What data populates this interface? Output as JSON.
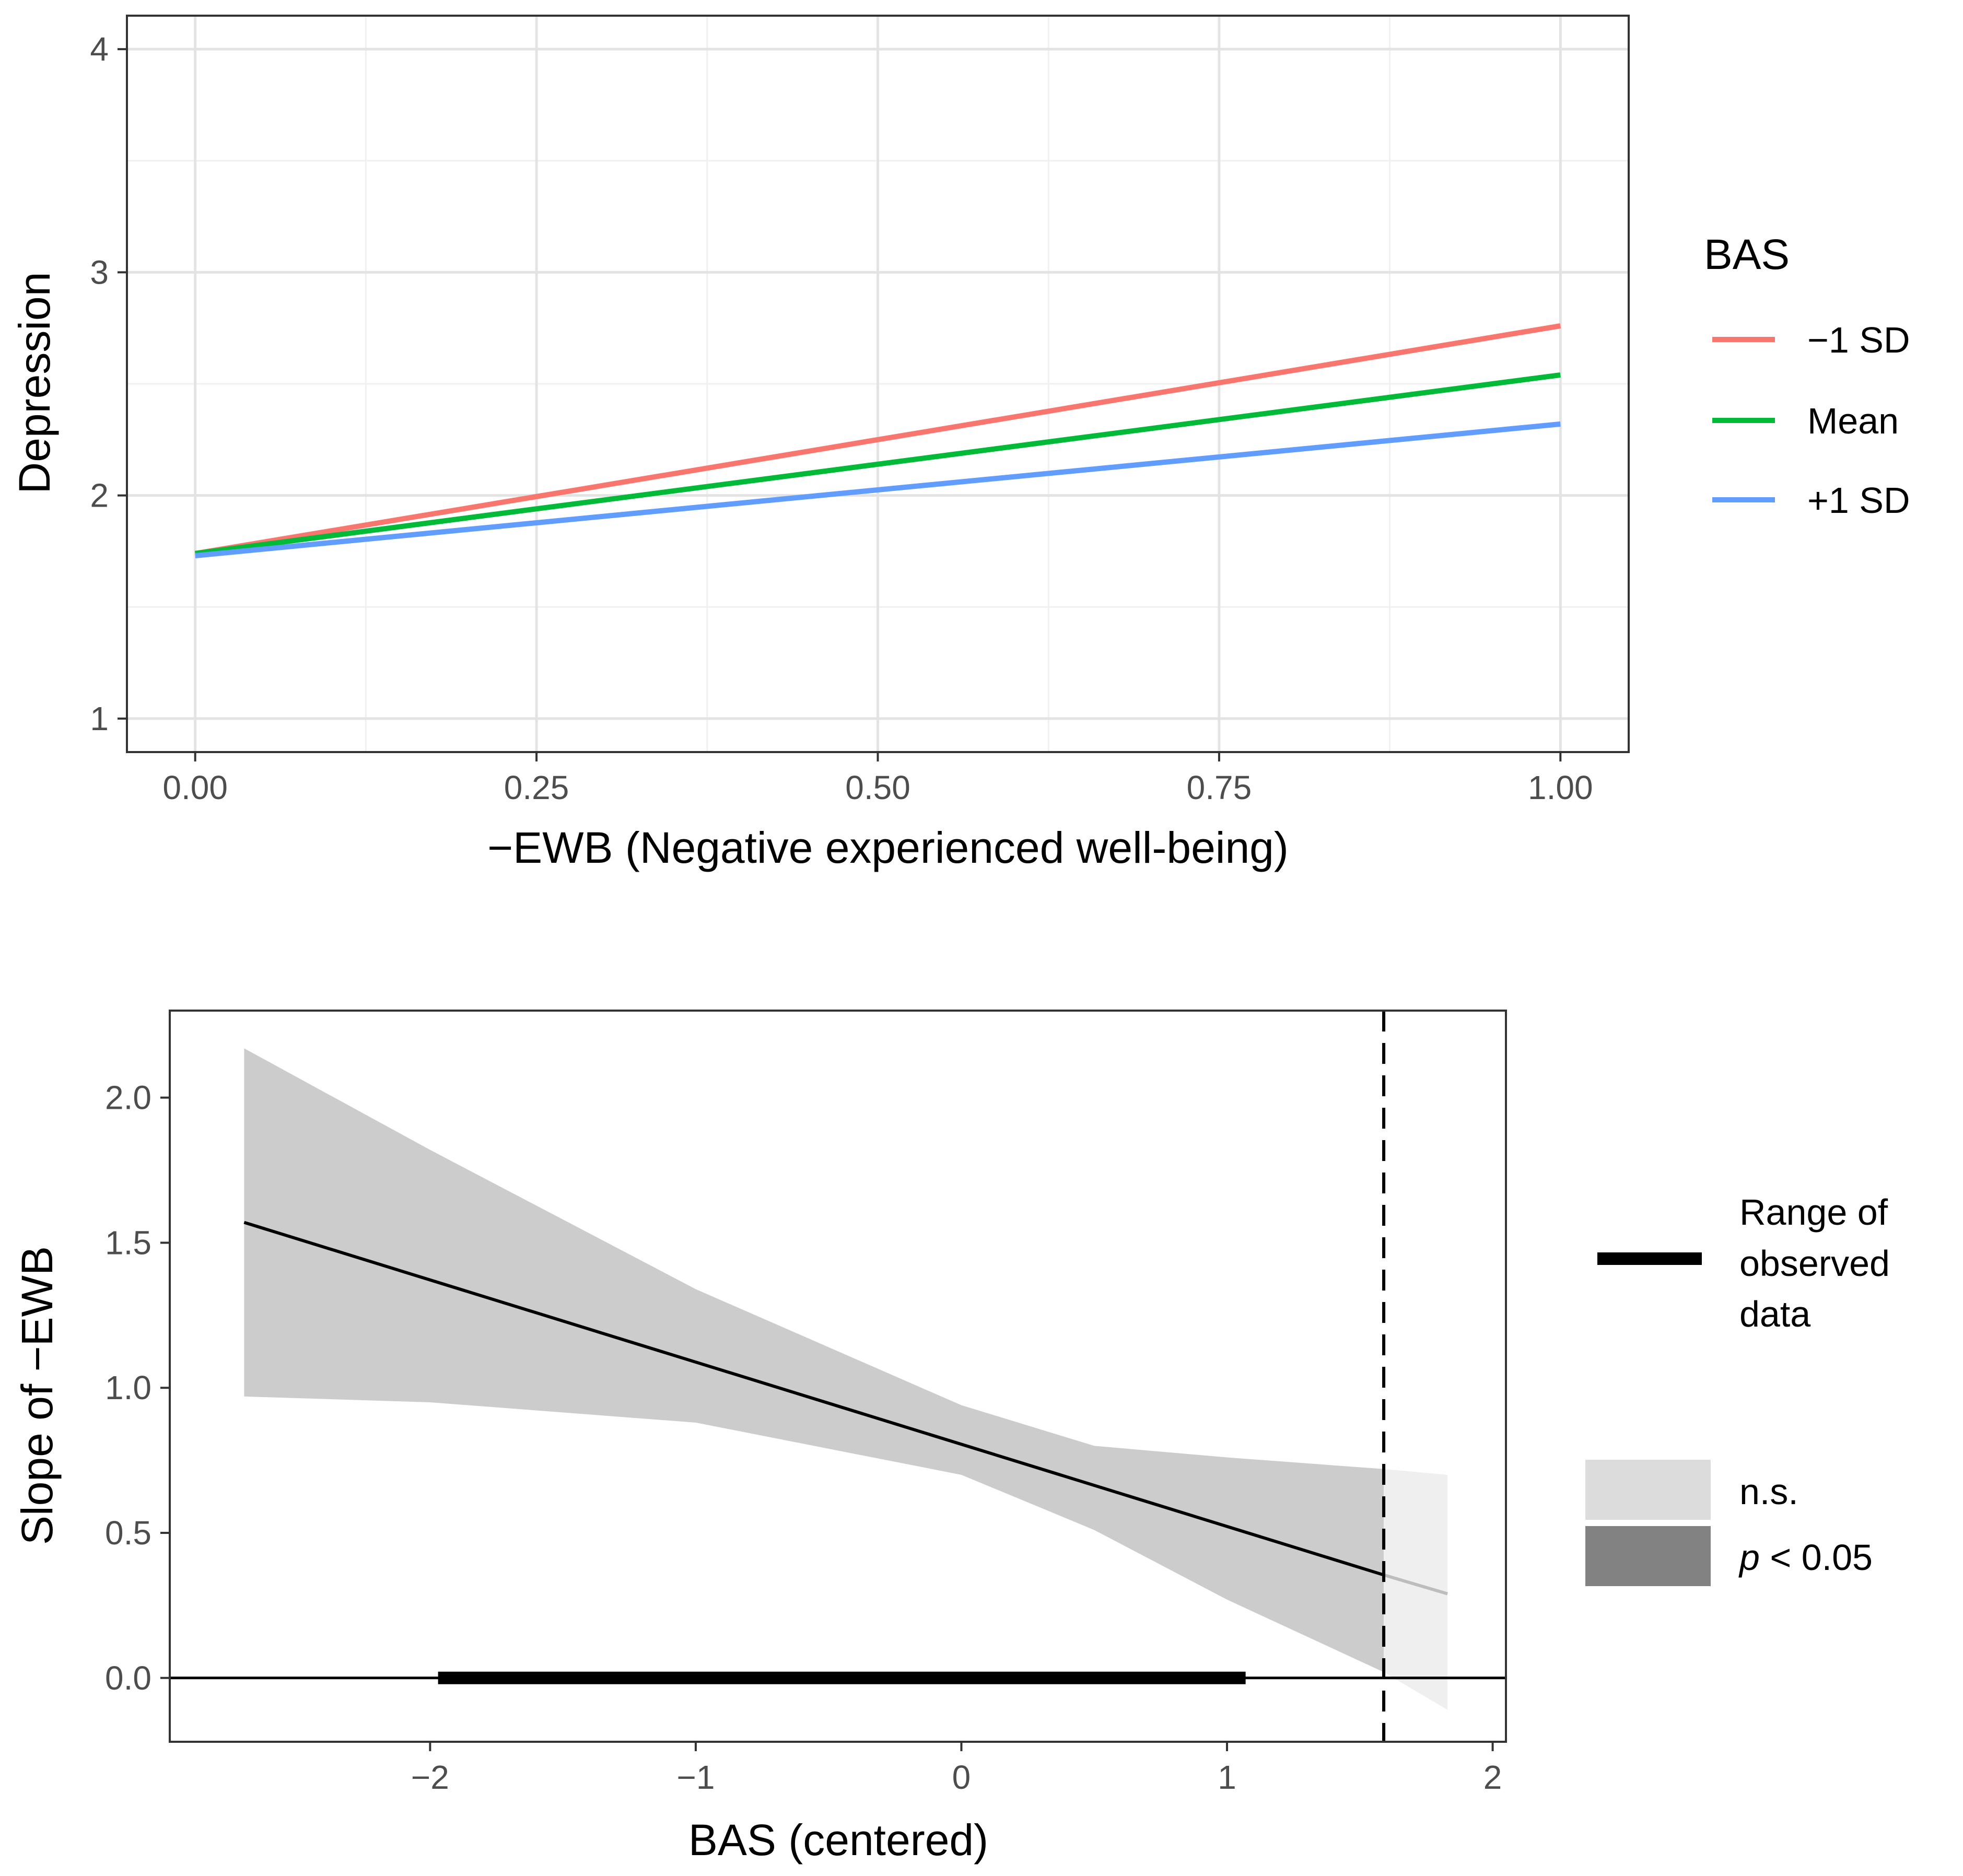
{
  "chart_data": [
    {
      "type": "line",
      "xlabel": "−EWB (Negative experienced well-being)",
      "ylabel": "Depression",
      "xlim": [
        -0.05,
        1.05
      ],
      "ylim": [
        0.85,
        4.15
      ],
      "xticks": [
        0.0,
        0.25,
        0.5,
        0.75,
        1.0
      ],
      "xtick_labels": [
        "0.00",
        "0.25",
        "0.50",
        "0.75",
        "1.00"
      ],
      "yticks": [
        1,
        2,
        3,
        4
      ],
      "ytick_labels": [
        "1",
        "2",
        "3",
        "4"
      ],
      "grid": true,
      "legend_title": "BAS",
      "legend_position": "right",
      "series": [
        {
          "name": "−1 SD",
          "color": "#F8766D",
          "x": [
            0,
            1
          ],
          "y": [
            1.74,
            2.76
          ]
        },
        {
          "name": "Mean",
          "color": "#00BA38",
          "x": [
            0,
            1
          ],
          "y": [
            1.74,
            2.54
          ]
        },
        {
          "name": "+1 SD",
          "color": "#619CFF",
          "x": [
            0,
            1
          ],
          "y": [
            1.73,
            2.32
          ]
        }
      ]
    },
    {
      "type": "line",
      "xlabel": "BAS (centered)",
      "ylabel": "Slope of −EWB",
      "xlim": [
        -2.98,
        2.05
      ],
      "ylim": [
        -0.22,
        2.3
      ],
      "xticks": [
        -2,
        -1,
        0,
        1,
        2
      ],
      "xtick_labels": [
        "−2",
        "−1",
        "0",
        "1",
        "2"
      ],
      "yticks": [
        0.0,
        0.5,
        1.0,
        1.5,
        2.0
      ],
      "ytick_labels": [
        "0.0",
        "0.5",
        "1.0",
        "1.5",
        "2.0"
      ],
      "grid": false,
      "legend_position": "right",
      "slope_line": {
        "x": [
          -2.7,
          1.59,
          1.83
        ],
        "y": [
          1.57,
          0.355,
          0.29
        ],
        "significant_until": 1.59
      },
      "confidence_band": {
        "x": [
          -2.7,
          -2,
          -1,
          0,
          0.5,
          1,
          1.59,
          1.83
        ],
        "lower": [
          0.97,
          0.95,
          0.88,
          0.7,
          0.51,
          0.27,
          0.02,
          -0.11
        ],
        "upper": [
          2.17,
          1.82,
          1.34,
          0.94,
          0.8,
          0.76,
          0.72,
          0.7
        ]
      },
      "johnson_neyman_threshold": 1.59,
      "zero_line": 0.0,
      "observed_range": [
        -1.97,
        1.07
      ],
      "legend": {
        "range_label": [
          "Range of",
          "observed",
          "data"
        ],
        "ns_label": "n.s.",
        "sig_label_italic": "p",
        "sig_label_rest": " < 0.05"
      },
      "colors": {
        "significant_band": "#cccccc",
        "ns_band": "#efefef",
        "ns_line": "#bdbdbd",
        "legend_ns_key": "#dcdcdc",
        "legend_sig_key": "#828282"
      }
    }
  ]
}
